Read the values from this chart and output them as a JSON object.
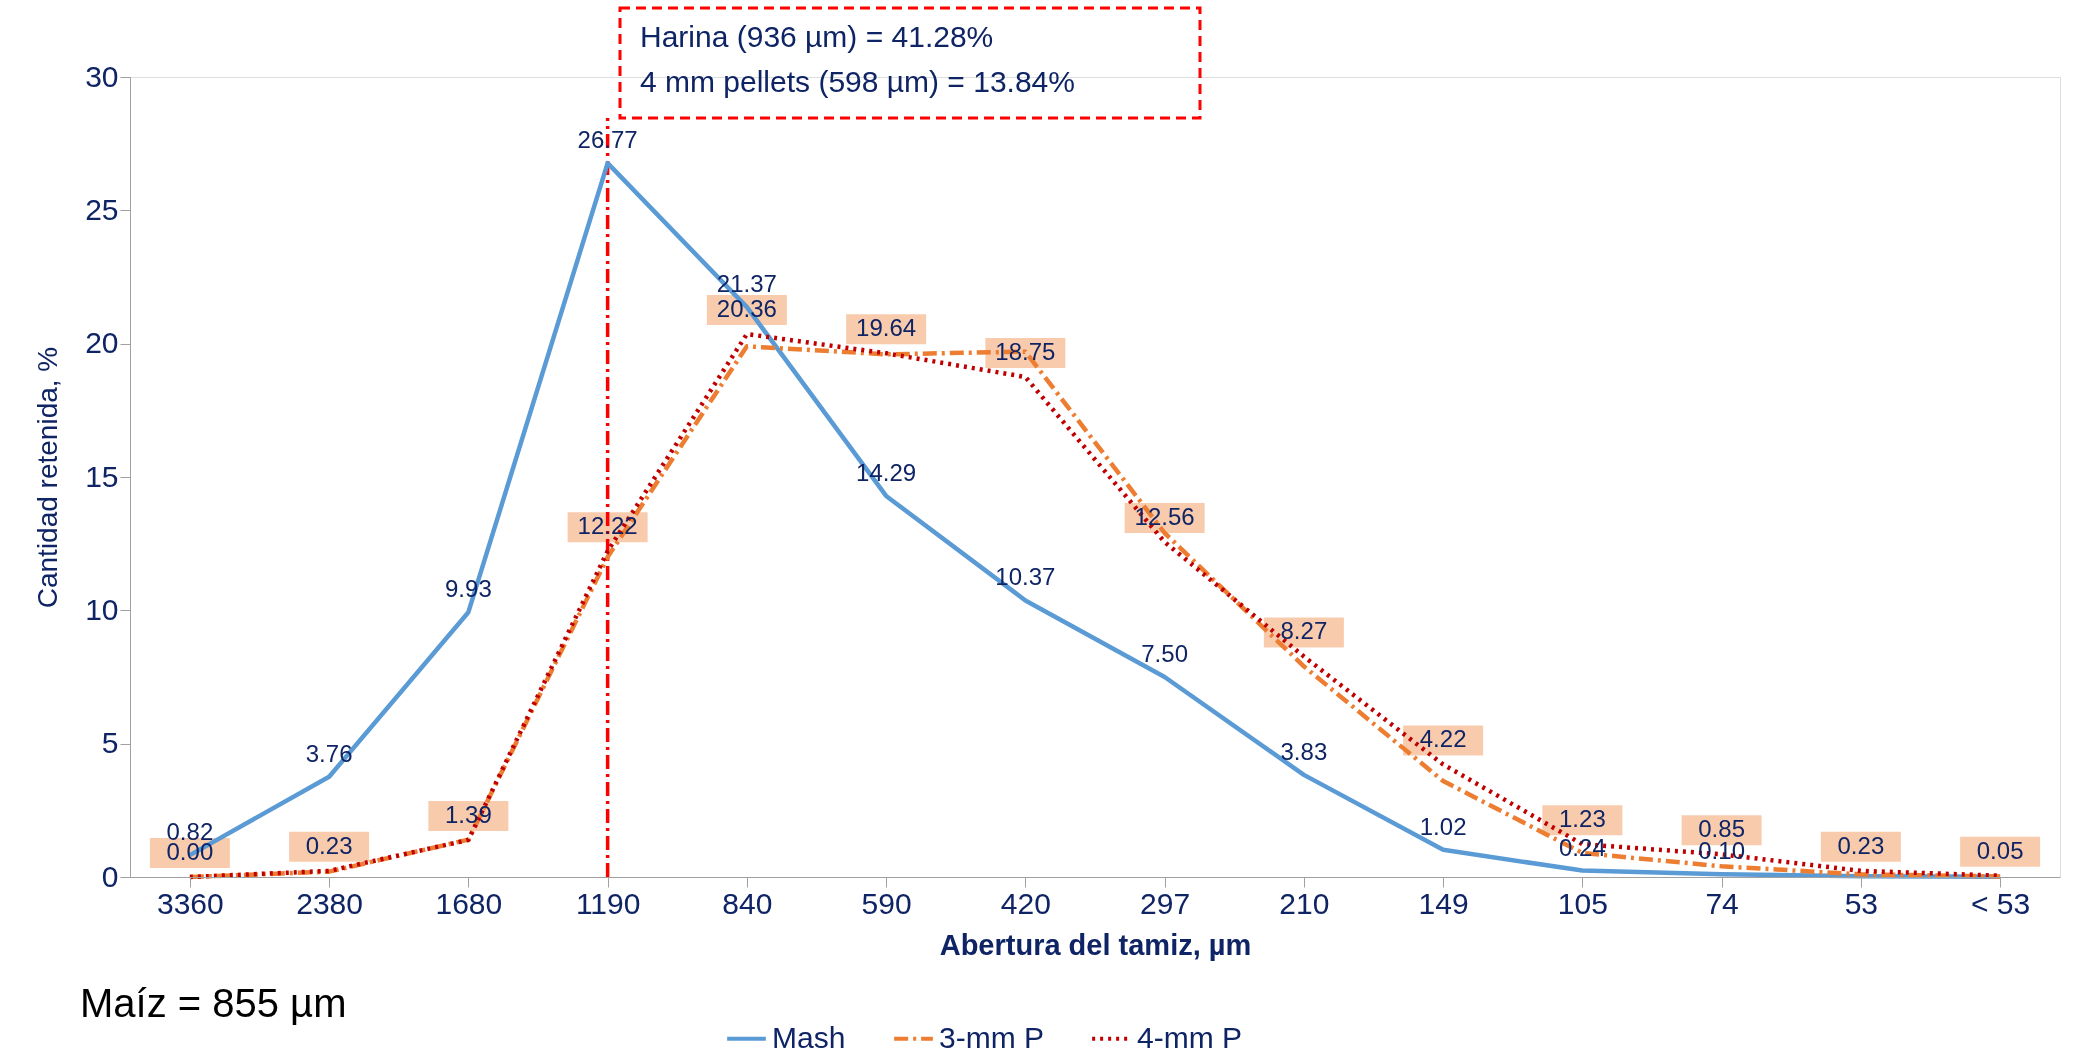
{
  "chart_data": {
    "type": "line",
    "xlabel": "Abertura del tamiz, µm",
    "ylabel": "Cantidad retenida, %",
    "categories": [
      "3360",
      "2380",
      "1680",
      "1190",
      "840",
      "590",
      "420",
      "297",
      "210",
      "149",
      "105",
      "74",
      "53",
      "< 53"
    ],
    "ylim": [
      0,
      30
    ],
    "yticks": [
      0,
      5,
      10,
      15,
      20,
      25,
      30
    ],
    "grid": false,
    "legend": "bottom",
    "marker": "none",
    "series": [
      {
        "name": "Mash",
        "color": "#5b9bd5",
        "line_style": "solid",
        "values": [
          0.82,
          3.76,
          9.93,
          26.77,
          21.37,
          14.29,
          10.37,
          7.5,
          3.83,
          1.02,
          0.24,
          0.1,
          0.03,
          0.01
        ],
        "value_labels": [
          "0.82",
          "3.76",
          "9.93",
          "26.77",
          "21.37",
          "14.29",
          "10.37",
          "7.50",
          "3.83",
          "1.02",
          "0.24",
          "0.10",
          null,
          null
        ]
      },
      {
        "name": "3-mm P",
        "color": "#ed7d31",
        "line_style": "dashed",
        "values": [
          0.0,
          0.2,
          1.4,
          12.0,
          19.9,
          19.6,
          19.7,
          12.9,
          7.9,
          3.6,
          0.9,
          0.4,
          0.1,
          0.02
        ]
      },
      {
        "name": "4-mm P",
        "color": "#c00000",
        "line_style": "dotted",
        "values": [
          0.0,
          0.23,
          1.39,
          12.22,
          20.36,
          19.64,
          18.75,
          12.56,
          8.27,
          4.22,
          1.23,
          0.85,
          0.23,
          0.05
        ],
        "value_labels": [
          "0.00",
          "0.23",
          "1.39",
          "12.22",
          "20.36",
          "19.64",
          "18.75",
          "12.56",
          "8.27",
          "4.22",
          "1.23",
          "0.85",
          "0.23",
          "0.05"
        ]
      }
    ],
    "ref_lines": [
      {
        "axis": "x",
        "value": "1190",
        "color": "#ff0000",
        "line_style": "dashed"
      }
    ],
    "annotations": [
      "Harina (936 µm) = 41.28%",
      "4 mm pellets (598 µm) = 13.84%",
      "Maíz = 855 µm"
    ]
  }
}
